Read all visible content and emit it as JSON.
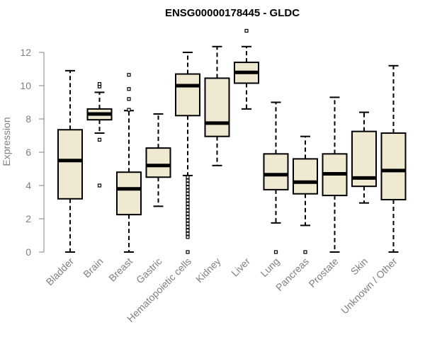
{
  "chart_data": {
    "type": "boxplot",
    "title": "ENSG00000178445 - GLDC",
    "xlabel": "",
    "ylabel": "Expression",
    "ylim": [
      0,
      13.5
    ],
    "yticks": [
      0,
      2,
      4,
      6,
      8,
      10,
      12
    ],
    "box_fill": "#efe9d2",
    "categories": [
      "Bladder",
      "Brain",
      "Breast",
      "Gastric",
      "Hematopoietic cells",
      "Kidney",
      "Liver",
      "Lung",
      "Pancreas",
      "Prostate",
      "Skin",
      "Unknown / Other"
    ],
    "boxes": [
      {
        "label": "Bladder",
        "whisker_low": 0.0,
        "q1": 3.2,
        "median": 5.5,
        "q3": 7.35,
        "whisker_high": 10.9,
        "outliers": []
      },
      {
        "label": "Brain",
        "whisker_low": 7.15,
        "q1": 7.95,
        "median": 8.3,
        "q3": 8.6,
        "whisker_high": 9.6,
        "outliers": [
          4.0,
          6.75,
          9.95,
          10.1
        ]
      },
      {
        "label": "Breast",
        "whisker_low": 0.0,
        "q1": 2.25,
        "median": 3.8,
        "q3": 4.8,
        "whisker_high": 8.5,
        "outliers": [
          8.55,
          9.2,
          9.8,
          10.65
        ]
      },
      {
        "label": "Gastric",
        "whisker_low": 2.75,
        "q1": 4.5,
        "median": 5.2,
        "q3": 6.25,
        "whisker_high": 8.3,
        "outliers": []
      },
      {
        "label": "Hematopoietic cells",
        "whisker_low": 4.6,
        "q1": 8.2,
        "median": 10.0,
        "q3": 10.7,
        "whisker_high": 12.0,
        "outliers": [
          0.0,
          0.9,
          1.1,
          1.3,
          1.5,
          1.7,
          1.9,
          2.1,
          2.3,
          2.5,
          2.7,
          2.9,
          3.1,
          3.3,
          3.5,
          3.7,
          3.9,
          4.1,
          4.3,
          4.5
        ]
      },
      {
        "label": "Kidney",
        "whisker_low": 5.2,
        "q1": 6.95,
        "median": 7.75,
        "q3": 10.45,
        "whisker_high": 12.35,
        "outliers": []
      },
      {
        "label": "Liver",
        "whisker_low": 8.6,
        "q1": 10.15,
        "median": 10.8,
        "q3": 11.4,
        "whisker_high": 12.35,
        "outliers": [
          13.3
        ]
      },
      {
        "label": "Lung",
        "whisker_low": 1.75,
        "q1": 3.75,
        "median": 4.65,
        "q3": 5.9,
        "whisker_high": 9.0,
        "outliers": [
          0.0
        ]
      },
      {
        "label": "Pancreas",
        "whisker_low": 1.6,
        "q1": 3.5,
        "median": 4.2,
        "q3": 5.6,
        "whisker_high": 6.95,
        "outliers": [
          0.0
        ]
      },
      {
        "label": "Prostate",
        "whisker_low": 0.0,
        "q1": 3.4,
        "median": 4.7,
        "q3": 5.9,
        "whisker_high": 9.3,
        "outliers": []
      },
      {
        "label": "Skin",
        "whisker_low": 2.95,
        "q1": 3.95,
        "median": 4.45,
        "q3": 7.25,
        "whisker_high": 8.4,
        "outliers": []
      },
      {
        "label": "Unknown / Other",
        "whisker_low": 0.0,
        "q1": 3.15,
        "median": 4.9,
        "q3": 7.15,
        "whisker_high": 11.2,
        "outliers": []
      }
    ]
  }
}
